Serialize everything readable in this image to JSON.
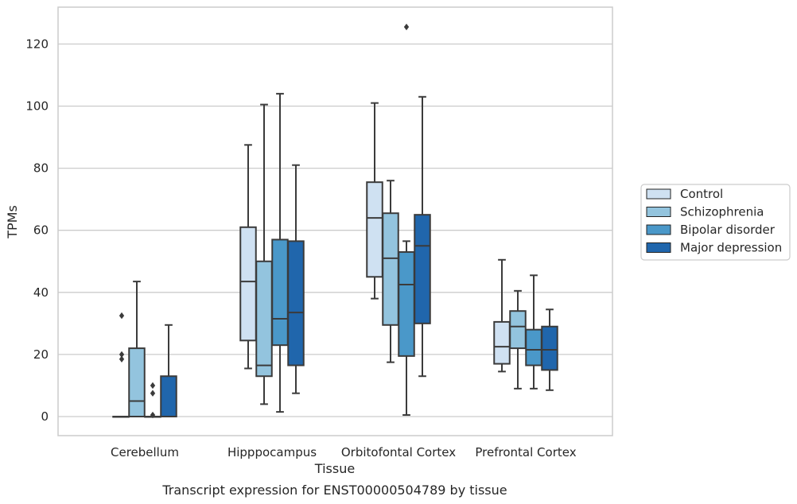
{
  "chart_data": {
    "type": "box",
    "caption": "Transcript expression for ENST00000504789 by tissue",
    "xlabel": "Tissue",
    "ylabel": "TPMs",
    "ylim": [
      -6,
      132
    ],
    "yticks": [
      0,
      20,
      40,
      60,
      80,
      100,
      120
    ],
    "grid": "horizontal",
    "legend_position": "right",
    "categories": [
      "Cerebellum",
      "Hipppocampus",
      "Orbitofontal Cortex",
      "Prefrontal Cortex"
    ],
    "series": [
      {
        "name": "Control",
        "color": "#cfe1f2",
        "boxes": [
          {
            "whislo": 0,
            "q1": 0,
            "med": 0,
            "q3": 0,
            "whishi": 0,
            "fliers": []
          },
          {
            "whislo": 15.5,
            "q1": 24.5,
            "med": 43.5,
            "q3": 61,
            "whishi": 87.5,
            "fliers": []
          },
          {
            "whislo": 38,
            "q1": 45,
            "med": 64,
            "q3": 75.5,
            "whishi": 101,
            "fliers": []
          },
          {
            "whislo": 14.5,
            "q1": 17,
            "med": 22.5,
            "q3": 30.5,
            "whishi": 50.5,
            "fliers": []
          }
        ]
      },
      {
        "name": "Schizophrenia",
        "color": "#93c4de",
        "boxes": [
          {
            "whislo": 0,
            "q1": 0,
            "med": 5,
            "q3": 22,
            "whishi": 43.5,
            "fliers": []
          },
          {
            "whislo": 4,
            "q1": 13,
            "med": 16.5,
            "q3": 50,
            "whishi": 100.5,
            "fliers": []
          },
          {
            "whislo": 17.5,
            "q1": 29.5,
            "med": 51,
            "q3": 65.5,
            "whishi": 76,
            "fliers": []
          },
          {
            "whislo": 9,
            "q1": 22,
            "med": 29,
            "q3": 34,
            "whishi": 40.5,
            "fliers": []
          }
        ]
      },
      {
        "name": "Bipolar disorder",
        "color": "#4a98c9",
        "boxes": [
          {
            "whislo": 0,
            "q1": 0,
            "med": 0,
            "q3": 0,
            "whishi": 0,
            "fliers": [
              10,
              7.5,
              0.5
            ]
          },
          {
            "whislo": 1.5,
            "q1": 23,
            "med": 31.5,
            "q3": 57,
            "whishi": 104,
            "fliers": []
          },
          {
            "whislo": 0.5,
            "q1": 19.5,
            "med": 42.5,
            "q3": 53,
            "whishi": 56.5,
            "fliers": [
              125.5
            ]
          },
          {
            "whislo": 9,
            "q1": 16.5,
            "med": 21.5,
            "q3": 28,
            "whishi": 45.5,
            "fliers": []
          }
        ]
      },
      {
        "name": "Major depression",
        "color": "#2066ac",
        "boxes": [
          {
            "whislo": 0,
            "q1": 0,
            "med": 0,
            "q3": 13,
            "whishi": 29.5,
            "fliers": []
          },
          {
            "whislo": 7.5,
            "q1": 16.5,
            "med": 33.5,
            "q3": 56.5,
            "whishi": 81,
            "fliers": []
          },
          {
            "whislo": 13,
            "q1": 30,
            "med": 55,
            "q3": 65,
            "whishi": 103,
            "fliers": []
          },
          {
            "whislo": 8.5,
            "q1": 15,
            "med": 21.5,
            "q3": 29,
            "whishi": 34.5,
            "fliers": []
          }
        ]
      }
    ],
    "extra_fliers": [
      {
        "category": "Cerebellum",
        "values": [
          32.5,
          20,
          18.5
        ]
      }
    ],
    "colors": {
      "grid": "#cccccc",
      "frame": "#cccccc",
      "line": "#3b3b3b"
    }
  }
}
